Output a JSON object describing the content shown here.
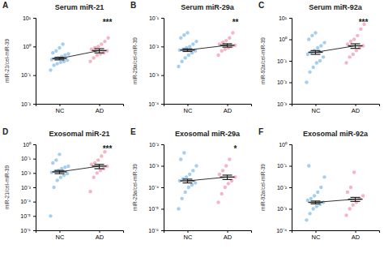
{
  "chart_data": [
    {
      "type": "scatter",
      "panel": "A",
      "title": "Serum miR-21",
      "y_label": "miR-21/cel-miR-39",
      "log": "y",
      "categories": [
        "NC",
        "AD"
      ],
      "colors": [
        "#8ec3ea",
        "#f4a3b8"
      ],
      "points": [
        [
          0.15,
          0.22,
          0.25,
          0.28,
          0.3,
          0.33,
          0.35,
          0.38,
          0.4,
          0.45,
          0.5,
          0.55,
          0.6,
          0.7,
          0.9,
          1.2
        ],
        [
          0.3,
          0.4,
          0.5,
          0.55,
          0.6,
          0.7,
          0.8,
          0.9,
          1.0,
          1.2,
          1.5,
          2.0
        ]
      ],
      "means": [
        0.38,
        0.72
      ],
      "errors": [
        0.04,
        0.12
      ],
      "annotation": "***",
      "ylim": [
        0.01,
        10
      ],
      "yticks": [
        {
          "value": 0.01,
          "label": "10⁻²"
        },
        {
          "value": 0.1,
          "label": "10⁻¹"
        },
        {
          "value": 1,
          "label": "10⁰"
        },
        {
          "value": 10,
          "label": "10¹"
        }
      ]
    },
    {
      "type": "scatter",
      "panel": "B",
      "title": "Serum miR-29a",
      "y_label": "miR-29a/cel-miR-39",
      "log": "y",
      "categories": [
        "NC",
        "AD"
      ],
      "colors": [
        "#8ec3ea",
        "#f4a3b8"
      ],
      "points": [
        [
          0.002,
          0.003,
          0.004,
          0.005,
          0.006,
          0.007,
          0.0075,
          0.008,
          0.009,
          0.01,
          0.012,
          0.015,
          0.02,
          0.025,
          0.03
        ],
        [
          0.005,
          0.007,
          0.008,
          0.009,
          0.01,
          0.011,
          0.012,
          0.014,
          0.016,
          0.02,
          0.03
        ]
      ],
      "means": [
        0.0075,
        0.011
      ],
      "errors": [
        0.0008,
        0.0015
      ],
      "annotation": "**",
      "ylim": [
        0.0001,
        0.1
      ],
      "yticks": [
        {
          "value": 0.0001,
          "label": "10⁻⁴"
        },
        {
          "value": 0.001,
          "label": "10⁻³"
        },
        {
          "value": 0.01,
          "label": "10⁻²"
        },
        {
          "value": 0.1,
          "label": "10⁻¹"
        }
      ]
    },
    {
      "type": "scatter",
      "panel": "C",
      "title": "Serum miR-92a",
      "y_label": "miR-92a/cel-miR-39",
      "log": "y",
      "categories": [
        "NC",
        "AD"
      ],
      "colors": [
        "#8ec3ea",
        "#f4a3b8"
      ],
      "points": [
        [
          0.01,
          0.03,
          0.05,
          0.08,
          0.1,
          0.15,
          0.2,
          0.25,
          0.3,
          0.4,
          0.5,
          0.7,
          1.0,
          1.5,
          2.0
        ],
        [
          0.08,
          0.15,
          0.2,
          0.3,
          0.4,
          0.5,
          0.6,
          0.8,
          1.0,
          1.5,
          3.0,
          5.0
        ]
      ],
      "means": [
        0.25,
        0.5
      ],
      "errors": [
        0.05,
        0.12
      ],
      "annotation": "***",
      "ylim": [
        0.001,
        10
      ],
      "yticks": [
        {
          "value": 0.001,
          "label": "10⁻³"
        },
        {
          "value": 0.01,
          "label": "10⁻²"
        },
        {
          "value": 0.1,
          "label": "10⁻¹"
        },
        {
          "value": 1,
          "label": "10⁰"
        },
        {
          "value": 10,
          "label": "10¹"
        }
      ]
    },
    {
      "type": "scatter",
      "panel": "D",
      "title": "Exosomal miR-21",
      "y_label": "miR-21/cel-miR-39",
      "log": "y",
      "categories": [
        "NC",
        "AD"
      ],
      "colors": [
        "#8ec3ea",
        "#f4a3b8"
      ],
      "points": [
        [
          1e-05,
          0.001,
          0.003,
          0.005,
          0.007,
          0.009,
          0.011,
          0.013,
          0.015,
          0.02,
          0.025,
          0.03,
          0.05,
          0.08,
          0.2
        ],
        [
          0.0005,
          0.005,
          0.01,
          0.015,
          0.02,
          0.03,
          0.04,
          0.05,
          0.08,
          0.15,
          0.3
        ]
      ],
      "means": [
        0.012,
        0.03
      ],
      "errors": [
        0.003,
        0.01
      ],
      "annotation": "***",
      "ylim": [
        1e-06,
        1
      ],
      "yticks": [
        {
          "value": 1e-06,
          "label": "10⁻⁶"
        },
        {
          "value": 1e-05,
          "label": "10⁻⁵"
        },
        {
          "value": 0.0001,
          "label": "10⁻⁴"
        },
        {
          "value": 0.001,
          "label": "10⁻³"
        },
        {
          "value": 0.01,
          "label": "10⁻²"
        },
        {
          "value": 0.1,
          "label": "10⁻¹"
        },
        {
          "value": 1,
          "label": "10⁰"
        }
      ]
    },
    {
      "type": "scatter",
      "panel": "E",
      "title": "Exosomal miR-29a",
      "y_label": "miR-29a/cel-miR-39",
      "log": "y",
      "categories": [
        "NC",
        "AD"
      ],
      "colors": [
        "#8ec3ea",
        "#f4a3b8"
      ],
      "points": [
        [
          1e-05,
          3e-05,
          6e-05,
          0.0001,
          0.00013,
          0.00016,
          0.0002,
          0.00025,
          0.0003,
          0.0004,
          0.0006,
          0.001,
          0.002,
          0.004
        ],
        [
          2e-05,
          5e-05,
          0.0001,
          0.00015,
          0.0002,
          0.0003,
          0.0004,
          0.0006,
          0.001,
          0.002
        ]
      ],
      "means": [
        0.0002,
        0.0003
      ],
      "errors": [
        4e-05,
        7e-05
      ],
      "annotation": "*",
      "ylim": [
        1e-06,
        0.01
      ],
      "yticks": [
        {
          "value": 1e-06,
          "label": "10⁻⁶"
        },
        {
          "value": 1e-05,
          "label": "10⁻⁵"
        },
        {
          "value": 0.0001,
          "label": "10⁻⁴"
        },
        {
          "value": 0.001,
          "label": "10⁻³"
        },
        {
          "value": 0.01,
          "label": "10⁻²"
        }
      ]
    },
    {
      "type": "scatter",
      "panel": "F",
      "title": "Exosomal miR-92a",
      "y_label": "miR-92a/cel-miR-39",
      "log": "y",
      "categories": [
        "NC",
        "AD"
      ],
      "colors": [
        "#8ec3ea",
        "#f4a3b8"
      ],
      "points": [
        [
          0.0003,
          0.0006,
          0.001,
          0.0013,
          0.0016,
          0.002,
          0.0025,
          0.003,
          0.004,
          0.006,
          0.01,
          0.03,
          0.1
        ],
        [
          0.0005,
          0.001,
          0.0015,
          0.002,
          0.003,
          0.004,
          0.006,
          0.01,
          0.05
        ]
      ],
      "means": [
        0.002,
        0.0028
      ],
      "errors": [
        0.0003,
        0.0006
      ],
      "ylim": [
        0.0001,
        1
      ],
      "yticks": [
        {
          "value": 0.0001,
          "label": "10⁻⁴"
        },
        {
          "value": 0.001,
          "label": "10⁻³"
        },
        {
          "value": 0.01,
          "label": "10⁻²"
        },
        {
          "value": 0.1,
          "label": "10⁻¹"
        },
        {
          "value": 1,
          "label": "10⁰"
        }
      ]
    }
  ]
}
